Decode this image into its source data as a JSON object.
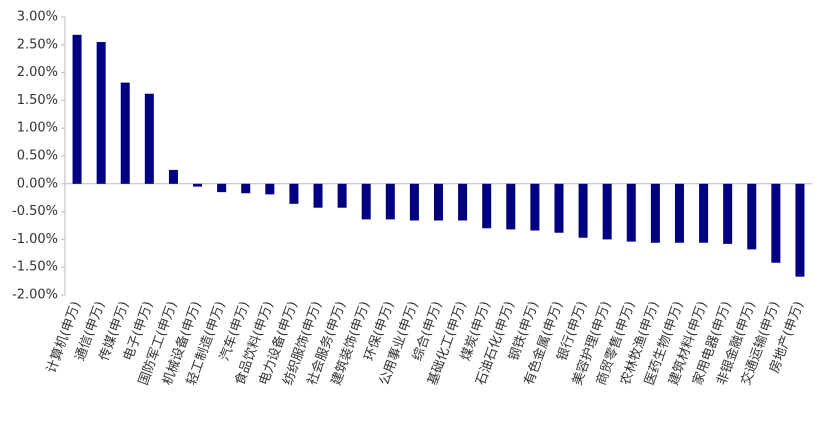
{
  "chart_data": {
    "type": "bar",
    "categories": [
      "计算机(申万)",
      "通信(申万)",
      "传媒(申万)",
      "电子(申万)",
      "国防军工(申万)",
      "机械设备(申万)",
      "轻工制造(申万)",
      "汽车(申万)",
      "食品饮料(申万)",
      "电力设备(申万)",
      "纺织服饰(申万)",
      "社会服务(申万)",
      "建筑装饰(申万)",
      "环保(申万)",
      "公用事业(申万)",
      "综合(申万)",
      "基础化工(申万)",
      "煤炭(申万)",
      "石油石化(申万)",
      "钢铁(申万)",
      "有色金属(申万)",
      "银行(申万)",
      "美容护理(申万)",
      "商贸零售(申万)",
      "农林牧渔(申万)",
      "医药生物(申万)",
      "建筑材料(申万)",
      "家用电器(申万)",
      "非银金融(申万)",
      "交通运输(申万)",
      "房地产(申万)"
    ],
    "values": [
      2.68,
      2.55,
      1.82,
      1.62,
      0.25,
      -0.05,
      -0.15,
      -0.17,
      -0.19,
      -0.36,
      -0.43,
      -0.43,
      -0.64,
      -0.64,
      -0.66,
      -0.66,
      -0.66,
      -0.8,
      -0.82,
      -0.84,
      -0.88,
      -0.97,
      -1.0,
      -1.04,
      -1.06,
      -1.06,
      -1.06,
      -1.08,
      -1.18,
      -1.42,
      -1.67
    ],
    "color": "#000080",
    "ylim": [
      -2,
      3
    ],
    "yticks": [
      {
        "value": -2,
        "label": "-2.00%"
      },
      {
        "value": -1.5,
        "label": "-1.50%"
      },
      {
        "value": -1,
        "label": "-1.00%"
      },
      {
        "value": -0.5,
        "label": "-0.50%"
      },
      {
        "value": 0,
        "label": "0.00%"
      },
      {
        "value": 0.5,
        "label": "0.50%"
      },
      {
        "value": 1,
        "label": "1.00%"
      },
      {
        "value": 1.5,
        "label": "1.50%"
      },
      {
        "value": 2,
        "label": "2.00%"
      },
      {
        "value": 2.5,
        "label": "2.50%"
      },
      {
        "value": 3,
        "label": "3.00%"
      }
    ],
    "grid": false
  }
}
